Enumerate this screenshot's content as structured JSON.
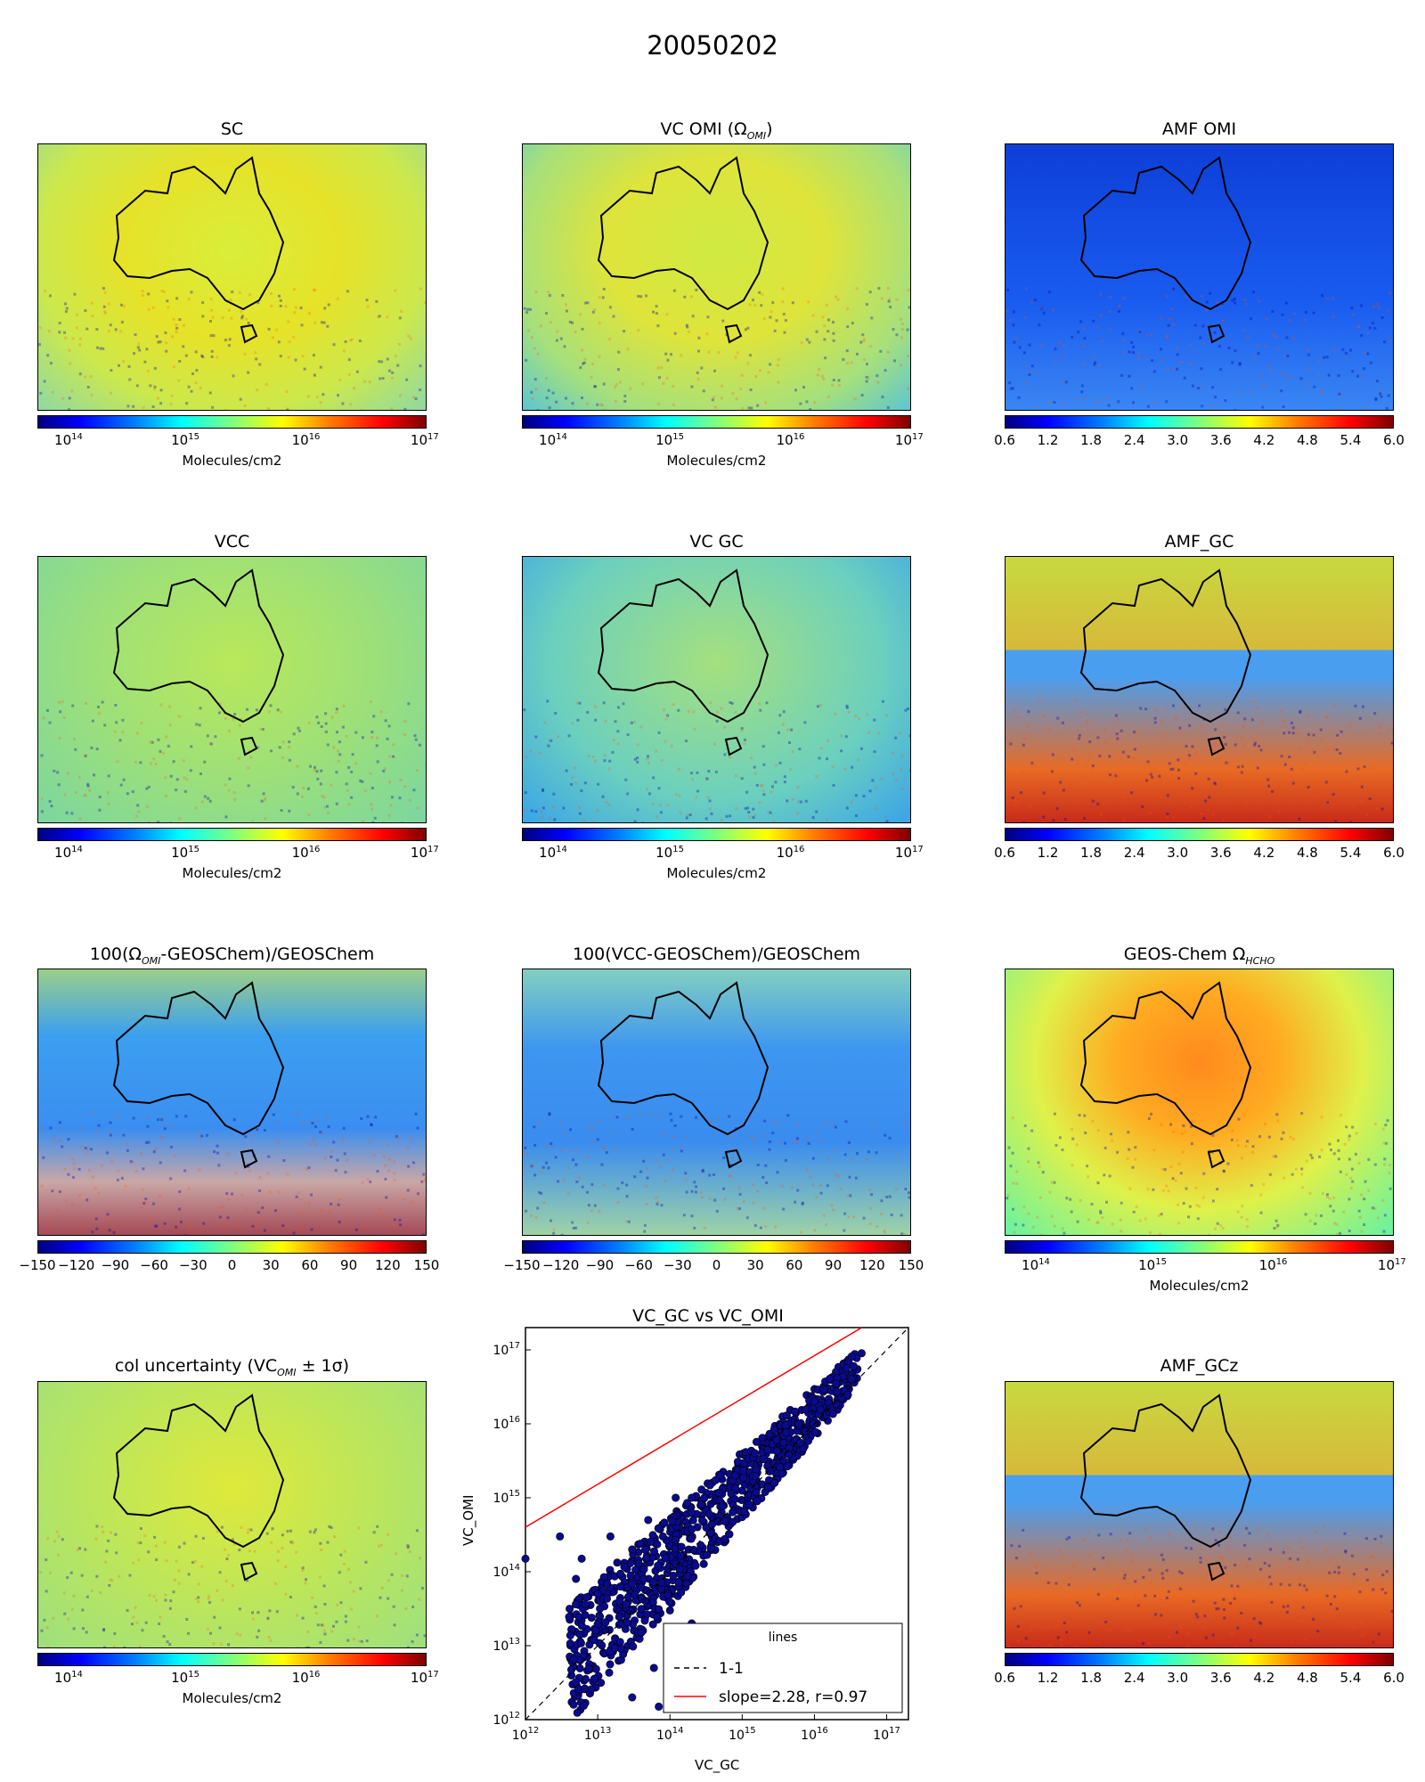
{
  "figure": {
    "title": "20050202"
  },
  "colorbars": {
    "log_ticks": [
      {
        "base": "10",
        "exp": "14"
      },
      {
        "base": "10",
        "exp": "15"
      },
      {
        "base": "10",
        "exp": "16"
      },
      {
        "base": "10",
        "exp": "17"
      }
    ],
    "log_label": "Molecules/cm2",
    "amf_ticks": [
      "0.6",
      "1.2",
      "1.8",
      "2.4",
      "3.0",
      "3.6",
      "4.2",
      "4.8",
      "5.4",
      "6.0"
    ],
    "pct_ticks": [
      "−150",
      "−120",
      "−90",
      "−60",
      "−30",
      "0",
      "30",
      "60",
      "90",
      "120",
      "150"
    ]
  },
  "panels": [
    {
      "title": "SC",
      "colorbar": "log"
    },
    {
      "title": "VC OMI (Ω",
      "title_sub": "OMI",
      "title_end": ")",
      "colorbar": "log"
    },
    {
      "title": "AMF OMI",
      "colorbar": "amf"
    },
    {
      "title": "VCC",
      "colorbar": "log"
    },
    {
      "title": "VC GC",
      "colorbar": "log"
    },
    {
      "title": "AMF_GC",
      "colorbar": "amf"
    },
    {
      "title": "100(Ω",
      "title_sub": "OMI",
      "title_end": "-GEOSChem)/GEOSChem",
      "colorbar": "pct"
    },
    {
      "title": "100(VCC-GEOSChem)/GEOSChem",
      "colorbar": "pct"
    },
    {
      "title": "GEOS-Chem Ω",
      "title_sub": "HCHO",
      "title_end": "",
      "colorbar": "log"
    },
    {
      "title": "col uncertainty (VC",
      "title_sub": "OMI",
      "title_end": " ± 1σ)",
      "colorbar": "log"
    },
    {
      "title": "AMF_GCz",
      "colorbar": "amf"
    }
  ],
  "colors": {
    "scatter_fill": "#0a0a8c",
    "fit_line": "#ff0000",
    "one_to_one": "#000000"
  },
  "chart_data": {
    "type": "scatter",
    "title": "VC_GC vs VC_OMI",
    "xlabel": "VC_GC",
    "ylabel": "VC_OMI",
    "xscale": "log",
    "yscale": "log",
    "xlim": [
      1000000000000.0,
      2e+17
    ],
    "ylim": [
      1000000000000.0,
      2e+17
    ],
    "x_ticks": [
      {
        "base": "10",
        "exp": "12"
      },
      {
        "base": "10",
        "exp": "13"
      },
      {
        "base": "10",
        "exp": "14"
      },
      {
        "base": "10",
        "exp": "15"
      },
      {
        "base": "10",
        "exp": "16"
      },
      {
        "base": "10",
        "exp": "17"
      }
    ],
    "y_ticks": [
      {
        "base": "10",
        "exp": "12"
      },
      {
        "base": "10",
        "exp": "13"
      },
      {
        "base": "10",
        "exp": "14"
      },
      {
        "base": "10",
        "exp": "15"
      },
      {
        "base": "10",
        "exp": "16"
      },
      {
        "base": "10",
        "exp": "17"
      }
    ],
    "series": [
      {
        "name": "1-1",
        "kind": "line",
        "x": [
          1000000000000.0,
          2e+17
        ],
        "y": [
          1000000000000.0,
          2e+17
        ]
      },
      {
        "name": "slope=2.28, r=0.97",
        "kind": "line",
        "x": [
          1000000000000.0,
          4.5e+16
        ],
        "y": [
          400000000000000.0,
          2e+17
        ]
      }
    ],
    "scatter_points": {
      "x": [
        1000000000000.0,
        3000000000000.0,
        6000000000000.0,
        15000000000000.0,
        30000000000000.0,
        50000000000000.0,
        80000000000000.0,
        120000000000000.0,
        200000000000000.0,
        300000000000000.0,
        500000000000000.0,
        800000000000000.0,
        1500000000000000.0,
        3000000000000000.0,
        6000000000000000.0,
        1e+16,
        2e+16,
        3.5e+16,
        4.5e+16,
        20000000000000.0,
        40000000000000.0,
        100000000000000.0,
        200000000000000.0,
        60000000000000.0,
        150000000000000.0,
        30000000000000.0,
        70000000000000.0,
        10000000000000.0,
        5000000000000.0
      ],
      "y": [
        150000000000000.0,
        300000000000000.0,
        150000000000000.0,
        300000000000000.0,
        200000000000000.0,
        500000000000000.0,
        300000000000000.0,
        1000000000000000.0,
        1000000000000000.0,
        1000000000000000.0,
        2000000000000000.0,
        2000000000000000.0,
        4000000000000000.0,
        6000000000000000.0,
        1e+16,
        2e+16,
        3.5e+16,
        6e+16,
        9e+16,
        40000000000000.0,
        15000000000000.0,
        30000000000000.0,
        20000000000000.0,
        5000000000000.0,
        10000000000000.0,
        2000000000000.0,
        1500000000000.0,
        50000000000000.0,
        80000000000000.0
      ]
    },
    "legend": {
      "title": "lines",
      "location": "lower-right",
      "entries": [
        "1-1",
        "slope=2.28, r=0.97"
      ]
    }
  }
}
